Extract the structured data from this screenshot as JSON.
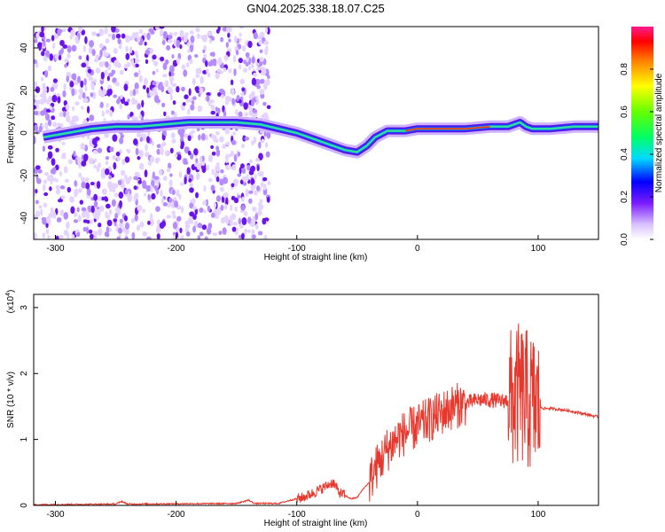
{
  "title": "GN04.2025.338.18.07.C25",
  "chart_data": [
    {
      "type": "heatmap",
      "xlabel": "Height of straight line (km)",
      "ylabel": "Frequency (Hz)",
      "xlim": [
        -318,
        150
      ],
      "ylim": [
        -50,
        50
      ],
      "xticks": [
        -300,
        -200,
        -100,
        0,
        100
      ],
      "yticks": [
        -40,
        -20,
        0,
        20,
        40
      ],
      "colorbar": {
        "label": "Normalized spectral amplitude",
        "range": [
          0,
          1
        ],
        "ticks": [
          0.0,
          0.2,
          0.4,
          0.6,
          0.8
        ]
      },
      "ridge": {
        "x": [
          -310,
          -290,
          -270,
          -250,
          -230,
          -210,
          -190,
          -170,
          -150,
          -130,
          -115,
          -100,
          -85,
          -70,
          -60,
          -50,
          -42,
          -35,
          -25,
          -10,
          0,
          20,
          40,
          60,
          75,
          85,
          90,
          95,
          110,
          130,
          150
        ],
        "y": [
          -2,
          0,
          2,
          3,
          3,
          4,
          5,
          5,
          5,
          4,
          2,
          0,
          -3,
          -6,
          -8,
          -9,
          -6,
          -2,
          1,
          1,
          2,
          2,
          2,
          3,
          3,
          5,
          3,
          2,
          2,
          3,
          3
        ]
      }
    },
    {
      "type": "line",
      "xlabel": "Height of straight line (km)",
      "ylabel": "SNR (10 * v/v)",
      "yscale_note": "(x10",
      "yscale_exp": "4",
      "xlim": [
        -318,
        150
      ],
      "ylim": [
        0,
        3.2
      ],
      "xticks": [
        -300,
        -200,
        -100,
        0,
        100
      ],
      "yticks": [
        0,
        1,
        2,
        3
      ],
      "series": [
        {
          "color": "#e8372c",
          "x": [
            -318,
            -250,
            -245,
            -240,
            -150,
            -140,
            -135,
            -115,
            -105,
            -95,
            -85,
            -75,
            -70,
            -65,
            -55,
            -50,
            -45,
            -40,
            -35,
            -30,
            -25,
            -20,
            -15,
            -10,
            -5,
            0,
            10,
            20,
            30,
            40,
            50,
            60,
            70,
            75,
            80,
            85,
            90,
            95,
            100,
            105,
            110,
            120,
            130,
            140,
            150
          ],
          "y": [
            0.01,
            0.02,
            0.06,
            0.02,
            0.03,
            0.08,
            0.03,
            0.03,
            0.08,
            0.12,
            0.2,
            0.3,
            0.35,
            0.2,
            0.1,
            0.12,
            0.25,
            0.35,
            0.55,
            0.7,
            0.85,
            0.95,
            1.05,
            1.1,
            1.15,
            1.2,
            1.3,
            1.4,
            1.5,
            1.55,
            1.6,
            1.6,
            1.58,
            1.6,
            1.6,
            1.7,
            1.6,
            1.55,
            1.5,
            1.47,
            1.47,
            1.45,
            1.42,
            1.38,
            1.34
          ]
        }
      ]
    }
  ]
}
